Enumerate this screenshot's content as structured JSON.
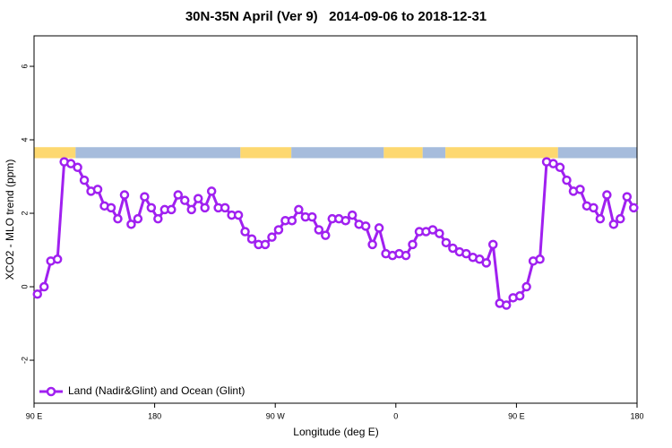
{
  "chart_data": {
    "type": "line",
    "title": "30N-35N April (Ver 9)   2014-09-06 to 2018-12-31",
    "x_label": "Longitude (deg E)",
    "y_label": "XCO2 - MLO trend (ppm)",
    "xlim": [
      90,
      540
    ],
    "ylim": [
      -3.17,
      6.83
    ],
    "xticks": [
      {
        "value": 90,
        "label": "90 E"
      },
      {
        "value": 180,
        "label": "180"
      },
      {
        "value": 270,
        "label": "90 W"
      },
      {
        "value": 360,
        "label": "0"
      },
      {
        "value": 450,
        "label": "90 E"
      },
      {
        "value": 540,
        "label": "180"
      }
    ],
    "yticks": [
      -2,
      0,
      2,
      4,
      6
    ],
    "legend": "bottom-left",
    "band": {
      "ylim": [
        3.5,
        3.8
      ],
      "segments": [
        {
          "x": [
            90,
            121
          ],
          "color": "#fdd870"
        },
        {
          "x": [
            121,
            244
          ],
          "color": "#a6bcdc"
        },
        {
          "x": [
            244,
            282
          ],
          "color": "#fdd870"
        },
        {
          "x": [
            282,
            351
          ],
          "color": "#a6bcdc"
        },
        {
          "x": [
            351,
            380
          ],
          "color": "#fdd870"
        },
        {
          "x": [
            380,
            397
          ],
          "color": "#a6bcdc"
        },
        {
          "x": [
            397,
            481
          ],
          "color": "#fdd870"
        },
        {
          "x": [
            481,
            540
          ],
          "color": "#a6bcdc"
        }
      ]
    },
    "x": [
      92.5,
      97.5,
      102.5,
      107.5,
      112.5,
      117.5,
      122.5,
      127.5,
      132.5,
      137.5,
      142.5,
      147.5,
      152.5,
      157.5,
      162.5,
      167.5,
      172.5,
      177.5,
      182.5,
      187.5,
      192.5,
      197.5,
      202.5,
      207.5,
      212.5,
      217.5,
      222.5,
      227.5,
      232.5,
      237.5,
      242.5,
      247.5,
      252.5,
      257.5,
      262.5,
      267.5,
      272.5,
      277.5,
      282.5,
      287.5,
      292.5,
      297.5,
      302.5,
      307.5,
      312.5,
      317.5,
      322.5,
      327.5,
      332.5,
      337.5,
      342.5,
      347.5,
      352.5,
      357.5,
      362.5,
      367.5,
      372.5,
      377.5,
      382.5,
      387.5,
      392.5,
      397.5,
      402.5,
      407.5,
      412.5,
      417.5,
      422.5,
      427.5,
      432.5,
      437.5,
      442.5,
      447.5,
      452.5,
      457.5,
      462.5,
      467.5,
      472.5,
      477.5,
      482.5,
      487.5,
      492.5,
      497.5,
      502.5,
      507.5,
      512.5,
      517.5,
      522.5,
      527.5,
      532.5,
      537.5
    ],
    "series": [
      {
        "name": "Land (Nadir&Glint) and Ocean (Glint)",
        "color": "#a020f0",
        "values": [
          -0.2,
          0.0,
          0.7,
          0.75,
          3.4,
          3.35,
          3.25,
          2.9,
          2.6,
          2.65,
          2.2,
          2.15,
          1.85,
          2.5,
          1.7,
          1.85,
          2.45,
          2.15,
          1.85,
          2.1,
          2.1,
          2.5,
          2.35,
          2.1,
          2.4,
          2.15,
          2.6,
          2.15,
          2.15,
          1.95,
          1.95,
          1.5,
          1.3,
          1.15,
          1.15,
          1.35,
          1.55,
          1.8,
          1.8,
          2.1,
          1.9,
          1.9,
          1.55,
          1.4,
          1.85,
          1.85,
          1.8,
          1.95,
          1.7,
          1.65,
          1.15,
          1.6,
          0.9,
          0.85,
          0.9,
          0.85,
          1.15,
          1.5,
          1.5,
          1.55,
          1.45,
          1.2,
          1.05,
          0.95,
          0.9,
          0.8,
          0.75,
          0.65,
          1.15,
          -0.45,
          -0.5,
          -0.3,
          -0.25,
          0.0,
          0.7,
          0.75,
          3.4,
          3.35,
          3.25,
          2.9,
          2.6,
          2.65,
          2.2,
          2.15,
          1.85,
          2.5,
          1.7,
          1.85,
          2.45,
          2.15
        ]
      }
    ]
  }
}
